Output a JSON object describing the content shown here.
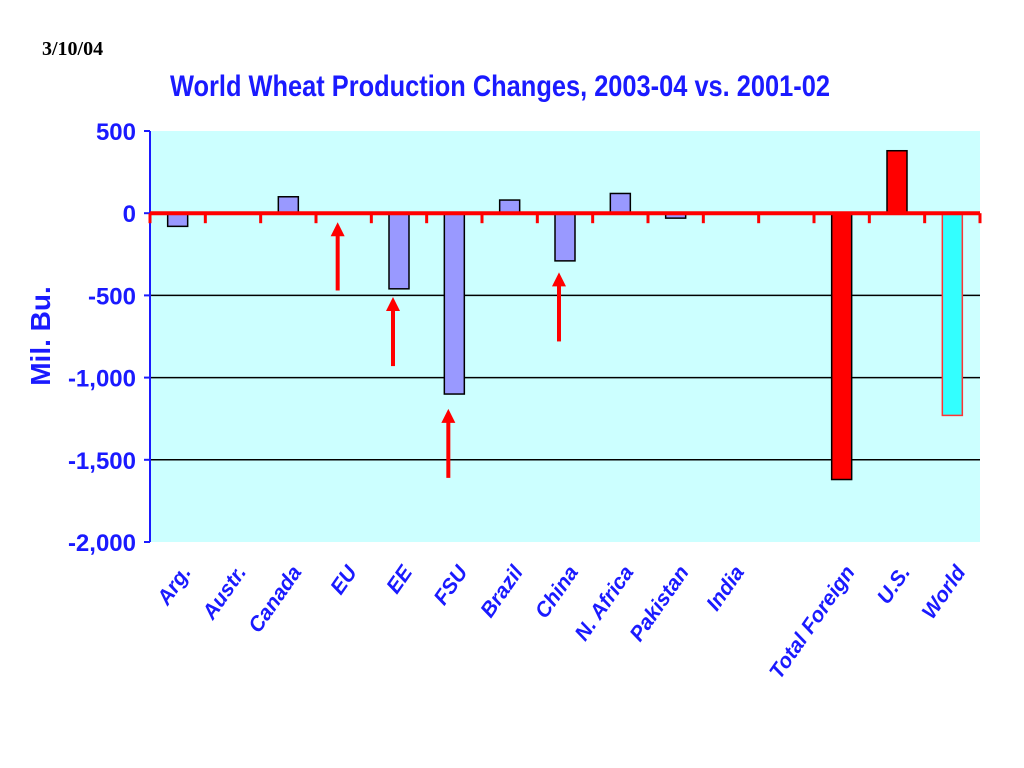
{
  "slide": {
    "date": "3/10/04"
  },
  "chart_data": {
    "type": "bar",
    "title": "World Wheat Production Changes, 2003-04 vs. 2001-02",
    "ylabel": "Mil. Bu.",
    "xlabel": "",
    "ylim": [
      -2000,
      500
    ],
    "yticks": [
      500,
      0,
      -500,
      -1000,
      -1500,
      -2000
    ],
    "ytick_labels": [
      "500",
      "0",
      "-500",
      "-1,000",
      "-1,500",
      "-2,000"
    ],
    "grid": true,
    "categories": [
      "Arg.",
      "Austr.",
      "Canada",
      "EU",
      "EE",
      "FSU",
      "Brazil",
      "China",
      "N. Africa",
      "Pakistan",
      "India",
      "",
      "Total Foreign",
      "U.S.",
      "World"
    ],
    "values": [
      -80,
      0,
      100,
      0,
      -460,
      -1100,
      80,
      -290,
      120,
      -30,
      0,
      null,
      -1620,
      380,
      -1230
    ],
    "bar_colors": [
      "#9999ff",
      "#9999ff",
      "#9999ff",
      "#9999ff",
      "#9999ff",
      "#9999ff",
      "#9999ff",
      "#9999ff",
      "#9999ff",
      "#9999ff",
      "#9999ff",
      "#9999ff",
      "#ff0000",
      "#ff0000",
      "#33ffff"
    ],
    "annotations": [
      {
        "type": "arrow",
        "category": "EU",
        "from_value": -470,
        "to_value": -55
      },
      {
        "type": "arrow",
        "category": "EE",
        "from_value": -930,
        "to_value": -510
      },
      {
        "type": "arrow",
        "category": "FSU",
        "from_value": -1610,
        "to_value": -1190
      },
      {
        "type": "arrow",
        "category": "China",
        "from_value": -780,
        "to_value": -360
      }
    ],
    "colors": {
      "plot_background": "#ccffff",
      "text": "#1a1aff",
      "zero_line": "#ff0000",
      "arrow": "#ff0000",
      "gridline": "#000000"
    }
  }
}
